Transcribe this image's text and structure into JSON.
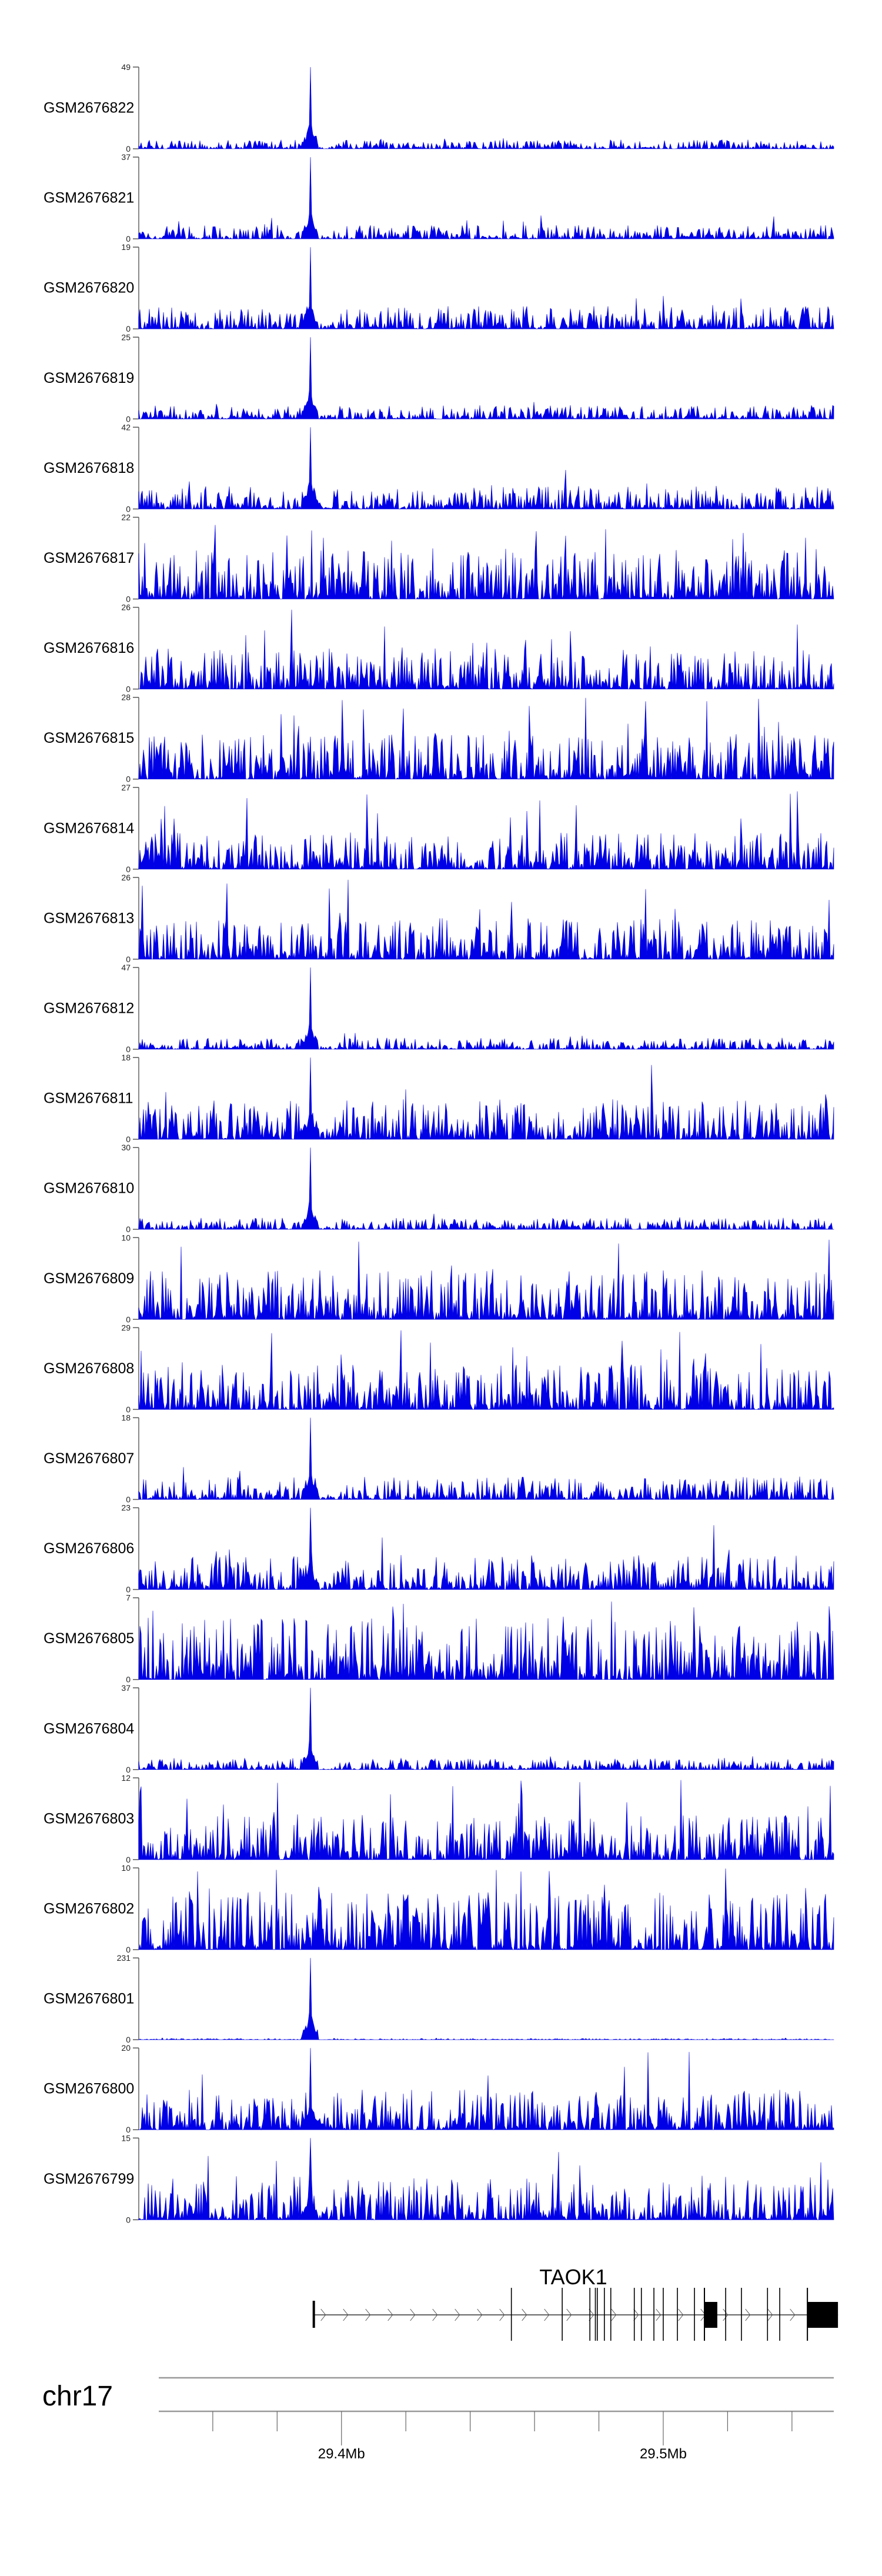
{
  "chart_data": {
    "type": "area",
    "title": "",
    "region": {
      "chrom": "chr17",
      "start_mb": 29.337,
      "end_mb": 29.553
    },
    "signal_color": "#0000e6",
    "tracks": [
      {
        "name": "GSM2676822",
        "ymin": 0,
        "ymax": 49,
        "profile": "peaked",
        "noise": 0.08
      },
      {
        "name": "GSM2676821",
        "ymin": 0,
        "ymax": 37,
        "profile": "peaked",
        "noise": 0.12
      },
      {
        "name": "GSM2676820",
        "ymin": 0,
        "ymax": 19,
        "profile": "peaked",
        "noise": 0.2
      },
      {
        "name": "GSM2676819",
        "ymin": 0,
        "ymax": 25,
        "profile": "peaked",
        "noise": 0.12
      },
      {
        "name": "GSM2676818",
        "ymin": 0,
        "ymax": 42,
        "profile": "peaked",
        "noise": 0.2
      },
      {
        "name": "GSM2676817",
        "ymin": 0,
        "ymax": 22,
        "profile": "broad",
        "noise": 0.6
      },
      {
        "name": "GSM2676816",
        "ymin": 0,
        "ymax": 26,
        "profile": "broad",
        "noise": 0.5
      },
      {
        "name": "GSM2676815",
        "ymin": 0,
        "ymax": 28,
        "profile": "broad",
        "noise": 0.55
      },
      {
        "name": "GSM2676814",
        "ymin": 0,
        "ymax": 27,
        "profile": "broad",
        "noise": 0.45
      },
      {
        "name": "GSM2676813",
        "ymin": 0,
        "ymax": 26,
        "profile": "broad",
        "noise": 0.5
      },
      {
        "name": "GSM2676812",
        "ymin": 0,
        "ymax": 47,
        "profile": "peaked",
        "noise": 0.1
      },
      {
        "name": "GSM2676811",
        "ymin": 0,
        "ymax": 18,
        "profile": "peaked",
        "noise": 0.35
      },
      {
        "name": "GSM2676810",
        "ymin": 0,
        "ymax": 30,
        "profile": "peaked",
        "noise": 0.1
      },
      {
        "name": "GSM2676809",
        "ymin": 0,
        "ymax": 10,
        "profile": "broad",
        "noise": 0.6
      },
      {
        "name": "GSM2676808",
        "ymin": 0,
        "ymax": 29,
        "profile": "broad",
        "noise": 0.55
      },
      {
        "name": "GSM2676807",
        "ymin": 0,
        "ymax": 18,
        "profile": "peaked",
        "noise": 0.2
      },
      {
        "name": "GSM2676806",
        "ymin": 0,
        "ymax": 23,
        "profile": "peaked",
        "noise": 0.3
      },
      {
        "name": "GSM2676805",
        "ymin": 0,
        "ymax": 7,
        "profile": "broad",
        "noise": 0.75
      },
      {
        "name": "GSM2676804",
        "ymin": 0,
        "ymax": 37,
        "profile": "peaked",
        "noise": 0.1
      },
      {
        "name": "GSM2676803",
        "ymin": 0,
        "ymax": 12,
        "profile": "broad",
        "noise": 0.55
      },
      {
        "name": "GSM2676802",
        "ymin": 0,
        "ymax": 10,
        "profile": "broad",
        "noise": 0.7
      },
      {
        "name": "GSM2676801",
        "ymin": 0,
        "ymax": 231,
        "profile": "peaked",
        "noise": 0.01
      },
      {
        "name": "GSM2676800",
        "ymin": 0,
        "ymax": 20,
        "profile": "peaked",
        "noise": 0.35
      },
      {
        "name": "GSM2676799",
        "ymin": 0,
        "ymax": 15,
        "profile": "peaked",
        "noise": 0.4
      }
    ],
    "peak_mb": 29.3903,
    "gene": {
      "name": "TAOK1",
      "strand": "+",
      "start_mb": 29.3914,
      "end_mb": 29.5543,
      "exons_mb": [
        29.4528,
        29.4686,
        29.4772,
        29.4789,
        29.4795,
        29.4817,
        29.4837,
        29.491,
        29.4932,
        29.4971,
        29.5,
        29.5044,
        29.5097,
        29.5194,
        29.5243,
        29.5324,
        29.5362
      ],
      "utr_blocks_mb": [
        [
          29.5128,
          29.5168
        ],
        [
          29.5448,
          29.5543
        ]
      ]
    },
    "axis": {
      "chrom_label": "chr17",
      "ticks_mb": [
        29.36,
        29.38,
        29.4,
        29.42,
        29.44,
        29.46,
        29.48,
        29.5,
        29.52,
        29.54
      ],
      "labels": [
        {
          "value": 29.4,
          "text": "29.4Mb"
        },
        {
          "value": 29.5,
          "text": "29.5Mb"
        }
      ]
    }
  }
}
